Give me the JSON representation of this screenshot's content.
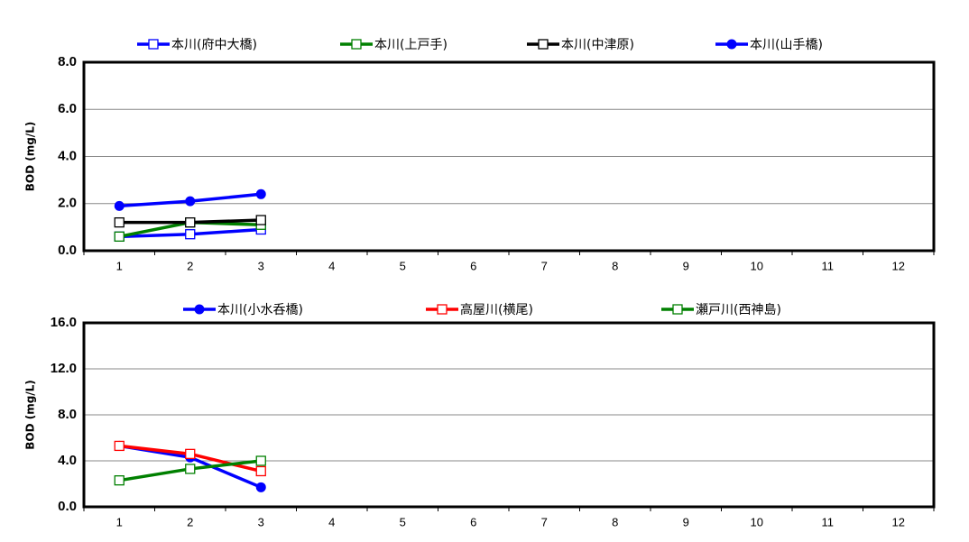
{
  "chart_data": [
    {
      "type": "line",
      "ylabel": "BOD (mg/L)",
      "categories": [
        "1",
        "2",
        "3",
        "4",
        "5",
        "6",
        "7",
        "8",
        "9",
        "10",
        "11",
        "12"
      ],
      "ylim": [
        0,
        8
      ],
      "yticks": [
        {
          "value": 0,
          "label": "0.0"
        },
        {
          "value": 2,
          "label": "2.0"
        },
        {
          "value": 4,
          "label": "4.0"
        },
        {
          "value": 6,
          "label": "6.0"
        },
        {
          "value": 8,
          "label": "8.0"
        }
      ],
      "grid": true,
      "series": [
        {
          "name": "本川(府中大橋)",
          "color": "#0000ff",
          "marker": "square",
          "values": [
            0.6,
            0.7,
            0.9,
            null,
            null,
            null,
            null,
            null,
            null,
            null,
            null,
            null
          ]
        },
        {
          "name": "本川(上戸手)",
          "color": "#008000",
          "marker": "square",
          "values": [
            0.6,
            1.2,
            1.1,
            null,
            null,
            null,
            null,
            null,
            null,
            null,
            null,
            null
          ]
        },
        {
          "name": "本川(中津原)",
          "color": "#000000",
          "marker": "square",
          "values": [
            1.2,
            1.2,
            1.3,
            null,
            null,
            null,
            null,
            null,
            null,
            null,
            null,
            null
          ]
        },
        {
          "name": "本川(山手橋)",
          "color": "#0000ff",
          "marker": "circle",
          "values": [
            1.9,
            2.1,
            2.4,
            null,
            null,
            null,
            null,
            null,
            null,
            null,
            null,
            null
          ]
        }
      ]
    },
    {
      "type": "line",
      "ylabel": "BOD (mg/L)",
      "categories": [
        "1",
        "2",
        "3",
        "4",
        "5",
        "6",
        "7",
        "8",
        "9",
        "10",
        "11",
        "12"
      ],
      "ylim": [
        0,
        16
      ],
      "yticks": [
        {
          "value": 0,
          "label": "0.0"
        },
        {
          "value": 4,
          "label": "4.0"
        },
        {
          "value": 8,
          "label": "8.0"
        },
        {
          "value": 12,
          "label": "12.0"
        },
        {
          "value": 16,
          "label": "16.0"
        }
      ],
      "grid": true,
      "series": [
        {
          "name": "本川(小水呑橋)",
          "color": "#0000ff",
          "marker": "circle",
          "values": [
            5.3,
            4.3,
            1.7,
            null,
            null,
            null,
            null,
            null,
            null,
            null,
            null,
            null
          ]
        },
        {
          "name": "高屋川(横尾)",
          "color": "#ff0000",
          "marker": "square",
          "values": [
            5.3,
            4.6,
            3.1,
            null,
            null,
            null,
            null,
            null,
            null,
            null,
            null,
            null
          ]
        },
        {
          "name": "瀬戸川(西神島)",
          "color": "#008000",
          "marker": "square",
          "values": [
            2.3,
            3.3,
            4.0,
            null,
            null,
            null,
            null,
            null,
            null,
            null,
            null,
            null
          ]
        }
      ]
    }
  ]
}
